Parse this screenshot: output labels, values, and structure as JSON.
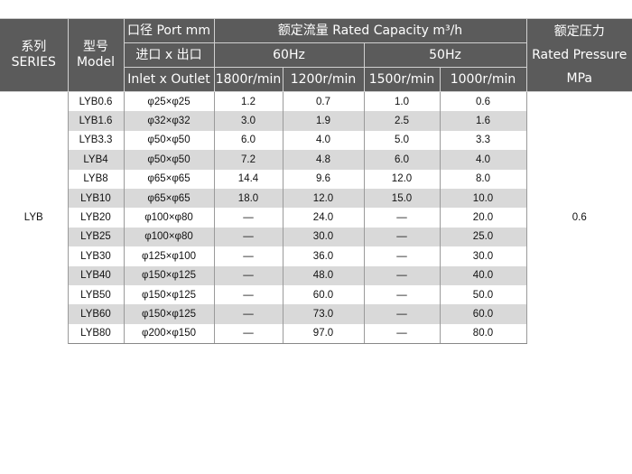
{
  "header": {
    "series_cn": "系列",
    "series_en": "SERIES",
    "model_cn": "型号",
    "model_en": "Model",
    "port": "口径 Port mm",
    "inlet_outlet_cn": "进口 x 出口",
    "inlet_outlet_en": "Inlet x Outlet",
    "capacity": "额定流量 Rated Capacity m³/h",
    "hz60": "60Hz",
    "hz50": "50Hz",
    "speeds": [
      "1800r/min",
      "1200r/min",
      "1500r/min",
      "1000r/min"
    ],
    "pressure_cn": "额定压力",
    "pressure_en": "Rated Pressure",
    "pressure_unit": "MPa"
  },
  "series": "LYB",
  "pressure": "0.6",
  "rows": [
    {
      "model": "LYB0.6",
      "port": "φ25×φ25",
      "c1800": "1.2",
      "c1200": "0.7",
      "c1500": "1.0",
      "c1000": "0.6"
    },
    {
      "model": "LYB1.6",
      "port": "φ32×φ32",
      "c1800": "3.0",
      "c1200": "1.9",
      "c1500": "2.5",
      "c1000": "1.6"
    },
    {
      "model": "LYB3.3",
      "port": "φ50×φ50",
      "c1800": "6.0",
      "c1200": "4.0",
      "c1500": "5.0",
      "c1000": "3.3"
    },
    {
      "model": "LYB4",
      "port": "φ50×φ50",
      "c1800": "7.2",
      "c1200": "4.8",
      "c1500": "6.0",
      "c1000": "4.0"
    },
    {
      "model": "LYB8",
      "port": "φ65×φ65",
      "c1800": "14.4",
      "c1200": "9.6",
      "c1500": "12.0",
      "c1000": "8.0"
    },
    {
      "model": "LYB10",
      "port": "φ65×φ65",
      "c1800": "18.0",
      "c1200": "12.0",
      "c1500": "15.0",
      "c1000": "10.0"
    },
    {
      "model": "LYB20",
      "port": "φ100×φ80",
      "c1800": "—",
      "c1200": "24.0",
      "c1500": "—",
      "c1000": "20.0"
    },
    {
      "model": "LYB25",
      "port": "φ100×φ80",
      "c1800": "—",
      "c1200": "30.0",
      "c1500": "—",
      "c1000": "25.0"
    },
    {
      "model": "LYB30",
      "port": "φ125×φ100",
      "c1800": "—",
      "c1200": "36.0",
      "c1500": "—",
      "c1000": "30.0"
    },
    {
      "model": "LYB40",
      "port": "φ150×φ125",
      "c1800": "—",
      "c1200": "48.0",
      "c1500": "—",
      "c1000": "40.0"
    },
    {
      "model": "LYB50",
      "port": "φ150×φ125",
      "c1800": "—",
      "c1200": "60.0",
      "c1500": "—",
      "c1000": "50.0"
    },
    {
      "model": "LYB60",
      "port": "φ150×φ125",
      "c1800": "—",
      "c1200": "73.0",
      "c1500": "—",
      "c1000": "60.0"
    },
    {
      "model": "LYB80",
      "port": "φ200×φ150",
      "c1800": "—",
      "c1200": "97.0",
      "c1500": "—",
      "c1000": "80.0"
    }
  ]
}
